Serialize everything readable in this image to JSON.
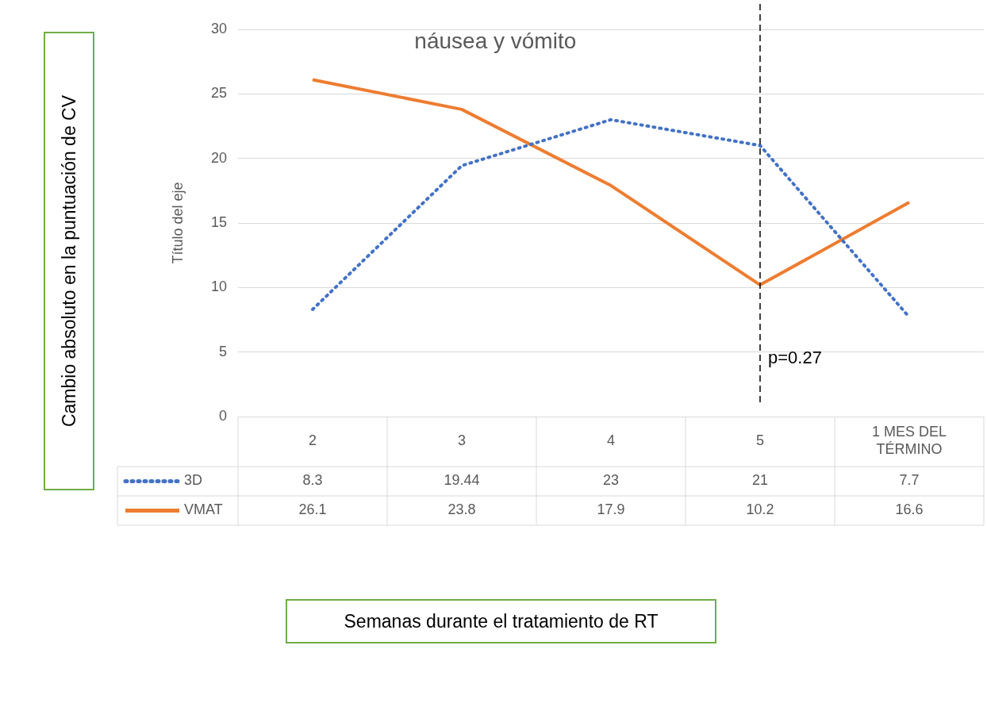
{
  "chart_data": {
    "type": "line",
    "title": "náusea y vómito",
    "ylabel": "Título del eje",
    "annotations": [
      "Cambio absoluto en la puntuación de CV",
      "Semanas durante el tratamiento de RT"
    ],
    "categories": [
      "2",
      "3",
      "4",
      "5",
      "1 MES DEL TÉRMINO"
    ],
    "series": [
      {
        "name": "3D",
        "color": "#4472c4",
        "line_style": "dotted",
        "values": [
          8.3,
          19.44,
          23,
          21,
          7.7
        ]
      },
      {
        "name": "VMAT",
        "color": "#ed7d31",
        "line_style": "solid",
        "values": [
          26.1,
          23.8,
          17.9,
          10.2,
          16.6
        ]
      }
    ],
    "ylim": [
      0,
      30
    ],
    "yticks": [
      0,
      5,
      10,
      15,
      20,
      25,
      30
    ],
    "grid": "y",
    "legend": "bottom",
    "marker": "none",
    "data_labels": true,
    "ref_lines": [
      {
        "axis": "x",
        "value": "5",
        "label": "p=0.27",
        "color": "#000000",
        "line_style": "dashed"
      }
    ]
  }
}
